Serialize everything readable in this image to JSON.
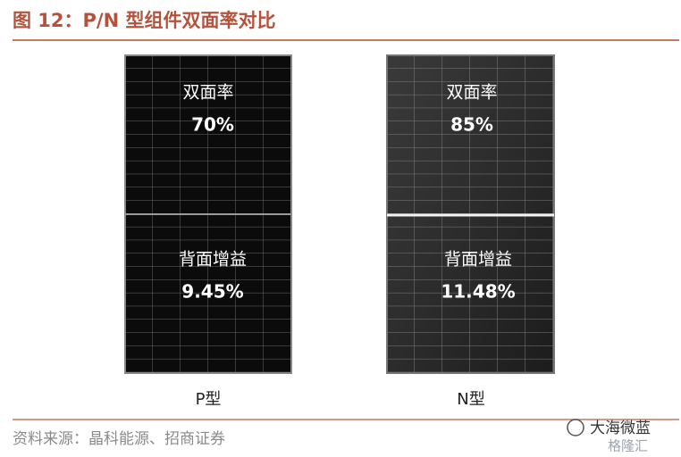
{
  "header": {
    "title": "图 12：P/N 型组件双面率对比"
  },
  "panels": [
    {
      "label": "P型",
      "rows": [
        {
          "label": "双面率",
          "value": "70%"
        },
        {
          "label": "背面增益",
          "value": "9.45%"
        }
      ]
    },
    {
      "label": "N型",
      "rows": [
        {
          "label": "双面率",
          "value": "85%"
        },
        {
          "label": "背面增益",
          "value": "11.48%"
        }
      ]
    }
  ],
  "footer": {
    "source": "资料来源：晶科能源、招商证券",
    "watermark": "大海微蓝",
    "watermark_sub": "格隆汇"
  }
}
